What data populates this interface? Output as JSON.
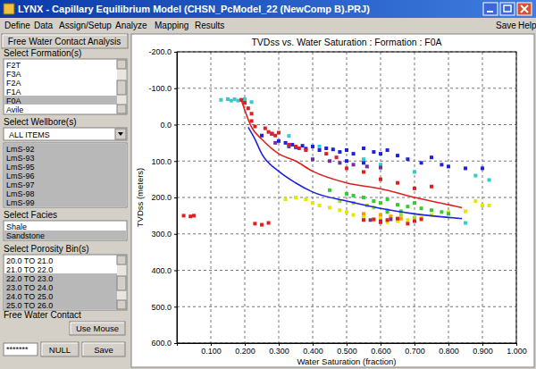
{
  "window": {
    "title": "LYNX - Capillary Equilibrium Model (CHSN_PcModel_22 (NewComp B).PRJ)"
  },
  "menu": {
    "items": [
      "Define",
      "Data",
      "Assign/Setup",
      "Analyze",
      "Mapping",
      "Results"
    ],
    "right_items": [
      "Save",
      "Help"
    ]
  },
  "sidebar": {
    "tab": "Free Water Contact Analysis",
    "formations": {
      "label": "Select Formation(s)",
      "items": [
        {
          "text": "F2T",
          "selected": false
        },
        {
          "text": "F3A",
          "selected": false
        },
        {
          "text": "F2A",
          "selected": false
        },
        {
          "text": "F1A",
          "selected": false
        },
        {
          "text": "F0A",
          "selected": true
        },
        {
          "text": "Avile",
          "selected": false
        }
      ]
    },
    "wellbores": {
      "label": "Select Wellbore(s)",
      "dropdown": "ALL ITEMS",
      "items": [
        {
          "text": "LmS-92",
          "selected": true
        },
        {
          "text": "LmS-93",
          "selected": true
        },
        {
          "text": "LmS-95",
          "selected": true
        },
        {
          "text": "LmS-96",
          "selected": true
        },
        {
          "text": "LmS-97",
          "selected": true
        },
        {
          "text": "LmS-98",
          "selected": true
        },
        {
          "text": "LmS-99",
          "selected": true
        }
      ]
    },
    "facies": {
      "label": "Select Facies",
      "items": [
        {
          "text": "Shale",
          "selected": false
        },
        {
          "text": "Sandstone",
          "selected": true
        }
      ]
    },
    "porosity_bins": {
      "label": "Select Porosity Bin(s)",
      "items": [
        {
          "text": "20.0 TO 21.0",
          "selected": false
        },
        {
          "text": "21.0 TO 22.0",
          "selected": false
        },
        {
          "text": "22.0 TO 23.0",
          "selected": true
        },
        {
          "text": "23.0 TO 24.0",
          "selected": true
        },
        {
          "text": "24.0 TO 25.0",
          "selected": true
        },
        {
          "text": "25.0 TO 26.0",
          "selected": true
        }
      ]
    },
    "free_water_contact": {
      "label": "Free Water Contact",
      "use_mouse": "Use Mouse",
      "input": "*******",
      "null_button": "NULL",
      "save_button": "Save"
    }
  },
  "chart_data": {
    "type": "scatter",
    "title": "TVDss vs. Water Saturation : Formation : F0A",
    "x_label": "Water Saturation (fraction)",
    "y_label": "TVDss (meters)",
    "xlim": [
      0,
      1
    ],
    "ylim": [
      -200,
      600
    ],
    "xticks": [
      {
        "value": 0.1,
        "label": "0.100"
      },
      {
        "value": 0.2,
        "label": "0.200"
      },
      {
        "value": 0.3,
        "label": "0.300"
      },
      {
        "value": 0.4,
        "label": "0.400"
      },
      {
        "value": 0.5,
        "label": "0.500"
      },
      {
        "value": 0.6,
        "label": "0.600"
      },
      {
        "value": 0.7,
        "label": "0.700"
      },
      {
        "value": 0.8,
        "label": "0.800"
      },
      {
        "value": 0.9,
        "label": "0.900"
      },
      {
        "value": 1,
        "label": "1.000"
      }
    ],
    "yticks": [
      {
        "value": -200,
        "label": "-200.0"
      },
      {
        "value": -100,
        "label": "-100.0"
      },
      {
        "value": 0,
        "label": "0.0"
      },
      {
        "value": 100,
        "label": "100.0"
      },
      {
        "value": 200,
        "label": "200.0"
      },
      {
        "value": 300,
        "label": "300.0"
      },
      {
        "value": 400,
        "label": "400.0"
      },
      {
        "value": 500,
        "label": "500.0"
      },
      {
        "value": 600,
        "label": "600.0"
      }
    ],
    "grid": true,
    "marker": "square",
    "series": [
      {
        "color": "#e6e600",
        "x": [
          0.32,
          0.35,
          0.38,
          0.4,
          0.42,
          0.45,
          0.48,
          0.5,
          0.52,
          0.55,
          0.58,
          0.6,
          0.62,
          0.65,
          0.68,
          0.72,
          0.75,
          0.8,
          0.85,
          0.88,
          0.9,
          0.92
        ],
        "values": [
          205,
          200,
          205,
          215,
          222,
          228,
          235,
          240,
          248,
          255,
          262,
          258,
          268,
          265,
          262,
          255,
          248,
          240,
          238,
          210,
          222,
          222
        ]
      },
      {
        "color": "#99dd33",
        "x": [
          0.48,
          0.52,
          0.56,
          0.58,
          0.62,
          0.66,
          0.7
        ],
        "values": [
          210,
          215,
          222,
          228,
          235,
          248,
          255
        ]
      },
      {
        "color": "#33cc33",
        "x": [
          0.45,
          0.5,
          0.52,
          0.55,
          0.58,
          0.6,
          0.62,
          0.65,
          0.68,
          0.7,
          0.72,
          0.75,
          0.78,
          0.8,
          0.62,
          0.66
        ],
        "values": [
          180,
          190,
          195,
          200,
          210,
          215,
          205,
          220,
          225,
          215,
          230,
          235,
          240,
          245,
          240,
          238
        ]
      },
      {
        "color": "#ff9900",
        "x": [
          0.55,
          0.6,
          0.63,
          0.66
        ],
        "values": [
          245,
          248,
          252,
          258
        ]
      },
      {
        "color": "#33cccc",
        "x": [
          0.13,
          0.15,
          0.16,
          0.17,
          0.18,
          0.19,
          0.2,
          0.22,
          0.33,
          0.42,
          0.55,
          0.6,
          0.7,
          0.85,
          0.88,
          0.92
        ],
        "values": [
          -68,
          -70,
          -66,
          -70,
          -66,
          -68,
          -70,
          -62,
          31,
          60,
          95,
          110,
          130,
          270,
          140,
          152
        ]
      },
      {
        "color": "#7030a0",
        "x": [
          0.29,
          0.33,
          0.4,
          0.45,
          0.48,
          0.52,
          0.56,
          0.6,
          0.57,
          0.6,
          0.63
        ],
        "values": [
          50,
          60,
          95,
          100,
          105,
          110,
          115,
          118,
          262,
          265,
          260
        ]
      },
      {
        "color": "#2020e0",
        "x": [
          0.25,
          0.28,
          0.3,
          0.32,
          0.34,
          0.35,
          0.37,
          0.38,
          0.4,
          0.42,
          0.44,
          0.46,
          0.48,
          0.5,
          0.52,
          0.55,
          0.58,
          0.6,
          0.62,
          0.65,
          0.68,
          0.72,
          0.75,
          0.78,
          0.8,
          0.85,
          0.9,
          0.5,
          0.55
        ],
        "values": [
          30,
          25,
          45,
          50,
          55,
          62,
          58,
          66,
          60,
          70,
          65,
          68,
          75,
          70,
          80,
          65,
          75,
          80,
          70,
          85,
          95,
          105,
          90,
          110,
          115,
          120,
          120,
          100,
          105
        ]
      },
      {
        "color": "#e02020",
        "x": [
          0.19,
          0.2,
          0.21,
          0.22,
          0.22,
          0.23,
          0.26,
          0.27,
          0.28,
          0.29,
          0.3,
          0.33,
          0.35,
          0.36,
          0.38,
          0.44,
          0.47,
          0.5,
          0.55,
          0.6,
          0.65,
          0.7,
          0.75,
          0.02,
          0.04,
          0.05,
          0.23,
          0.25,
          0.27,
          0.55,
          0.58,
          0.6,
          0.62,
          0.65,
          0.68,
          0.7,
          0.72
        ],
        "values": [
          -68,
          -60,
          -45,
          -30,
          -10,
          5,
          10,
          20,
          25,
          30,
          22,
          55,
          60,
          65,
          70,
          80,
          90,
          120,
          130,
          150,
          160,
          175,
          170,
          250,
          252,
          250,
          272,
          275,
          270,
          262,
          260,
          268,
          262,
          258,
          272,
          265,
          260
        ]
      },
      {
        "type": "line",
        "line_style": "solid",
        "color": "#e02020",
        "x": [
          0.19,
          0.2,
          0.22,
          0.25,
          0.3,
          0.35,
          0.4,
          0.5,
          0.6,
          0.7,
          0.8,
          0.84
        ],
        "values": [
          -68,
          -40,
          7,
          40,
          80,
          100,
          128,
          160,
          176,
          200,
          220,
          228
        ]
      },
      {
        "type": "line",
        "line_style": "solid",
        "color": "#2020e0",
        "x": [
          0.21,
          0.23,
          0.25,
          0.3,
          0.35,
          0.4,
          0.5,
          0.6,
          0.7,
          0.8,
          0.84
        ],
        "values": [
          7,
          40,
          80,
          128,
          160,
          185,
          210,
          230,
          245,
          255,
          258
        ]
      }
    ]
  }
}
